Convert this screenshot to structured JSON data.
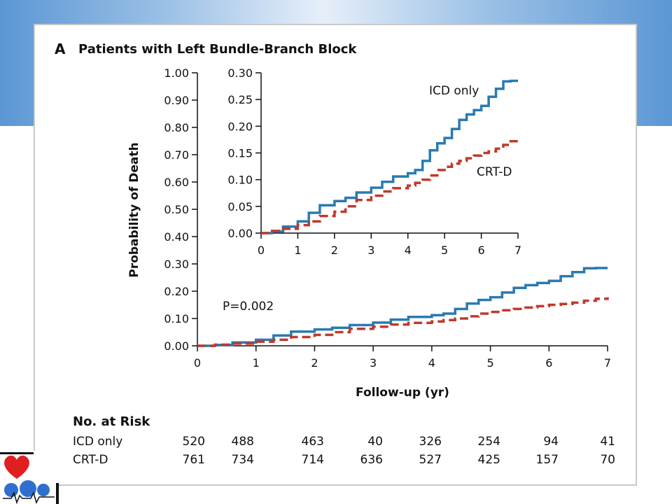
{
  "panel": {
    "letter": "A",
    "title": "Patients with Left Bundle-Branch Block"
  },
  "chart_data": [
    {
      "type": "line",
      "name": "main",
      "ylabel": "Probability of Death",
      "xlabel": "Follow-up (yr)",
      "xlim": [
        0,
        7
      ],
      "ylim": [
        0,
        1.0
      ],
      "x_ticks": [
        "0",
        "1",
        "2",
        "3",
        "4",
        "5",
        "6",
        "7"
      ],
      "y_ticks": [
        "0.00",
        "0.10",
        "0.20",
        "0.30",
        "0.40",
        "0.50",
        "0.60",
        "0.70",
        "0.80",
        "0.90",
        "1.00"
      ],
      "annotation": "P=0.002",
      "series": [
        {
          "name": "ICD only",
          "color": "#2a7ab0",
          "style": "solid",
          "x": [
            0,
            0.3,
            0.6,
            1.0,
            1.3,
            1.6,
            2.0,
            2.3,
            2.6,
            3.0,
            3.3,
            3.6,
            4.0,
            4.2,
            4.4,
            4.6,
            4.8,
            5.0,
            5.2,
            5.4,
            5.6,
            5.8,
            6.0,
            6.2,
            6.4,
            6.6,
            6.8,
            7.0
          ],
          "y": [
            0,
            0.003,
            0.012,
            0.022,
            0.038,
            0.052,
            0.06,
            0.066,
            0.076,
            0.085,
            0.096,
            0.106,
            0.112,
            0.118,
            0.135,
            0.155,
            0.168,
            0.178,
            0.195,
            0.212,
            0.222,
            0.23,
            0.238,
            0.255,
            0.27,
            0.284,
            0.285,
            0.285
          ]
        },
        {
          "name": "CRT-D",
          "color": "#c0392b",
          "style": "dashed",
          "x": [
            0,
            0.3,
            0.6,
            1.0,
            1.3,
            1.6,
            2.0,
            2.3,
            2.6,
            3.0,
            3.3,
            3.6,
            4.0,
            4.2,
            4.4,
            4.6,
            4.8,
            5.0,
            5.2,
            5.4,
            5.6,
            5.8,
            6.0,
            6.2,
            6.4,
            6.6,
            6.8,
            7.0
          ],
          "y": [
            0,
            0.004,
            0.008,
            0.015,
            0.022,
            0.032,
            0.04,
            0.05,
            0.062,
            0.07,
            0.078,
            0.084,
            0.089,
            0.094,
            0.1,
            0.108,
            0.118,
            0.124,
            0.13,
            0.135,
            0.14,
            0.145,
            0.15,
            0.153,
            0.158,
            0.165,
            0.172,
            0.178
          ]
        }
      ]
    },
    {
      "type": "line",
      "name": "inset",
      "xlim": [
        0,
        7
      ],
      "ylim": [
        0,
        0.3
      ],
      "x_ticks": [
        "0",
        "1",
        "2",
        "3",
        "4",
        "5",
        "6",
        "7"
      ],
      "y_ticks": [
        "0.00",
        "0.05",
        "0.10",
        "0.15",
        "0.20",
        "0.25",
        "0.30"
      ],
      "labels": [
        "ICD only",
        "CRT-D"
      ]
    }
  ],
  "risk_table": {
    "title": "No. at Risk",
    "rows": [
      {
        "label": "ICD only",
        "values": [
          "520",
          "488",
          "463",
          "40",
          "326",
          "254",
          "94",
          "41"
        ]
      },
      {
        "label": "CRT-D",
        "values": [
          "761",
          "734",
          "714",
          "636",
          "527",
          "425",
          "157",
          "70"
        ]
      }
    ]
  }
}
